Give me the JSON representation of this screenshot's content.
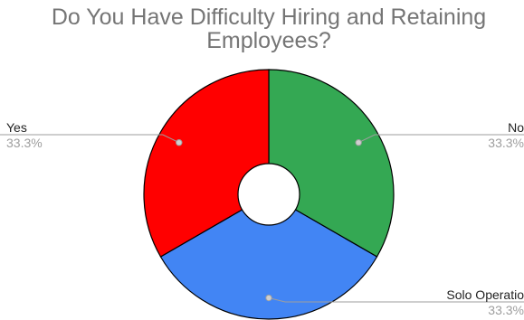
{
  "chart_data": {
    "type": "pie",
    "donut": true,
    "title_lines": [
      "Do You Have Difficulty Hiring and Retaining",
      "Employees?"
    ],
    "slices": [
      {
        "name": "No",
        "value": 33.3,
        "label": "33.3%",
        "color": "#34a853"
      },
      {
        "name": "Solo Operatio",
        "value": 33.3,
        "label": "33.3%",
        "color": "#4285f4"
      },
      {
        "name": "Yes",
        "value": 33.3,
        "label": "33.3%",
        "color": "#ff0000"
      }
    ],
    "start_angle_deg": 0,
    "direction": "clockwise",
    "slice_border_color": "#000000",
    "leader_line_color": "#9e9e9e",
    "legend": "none"
  }
}
